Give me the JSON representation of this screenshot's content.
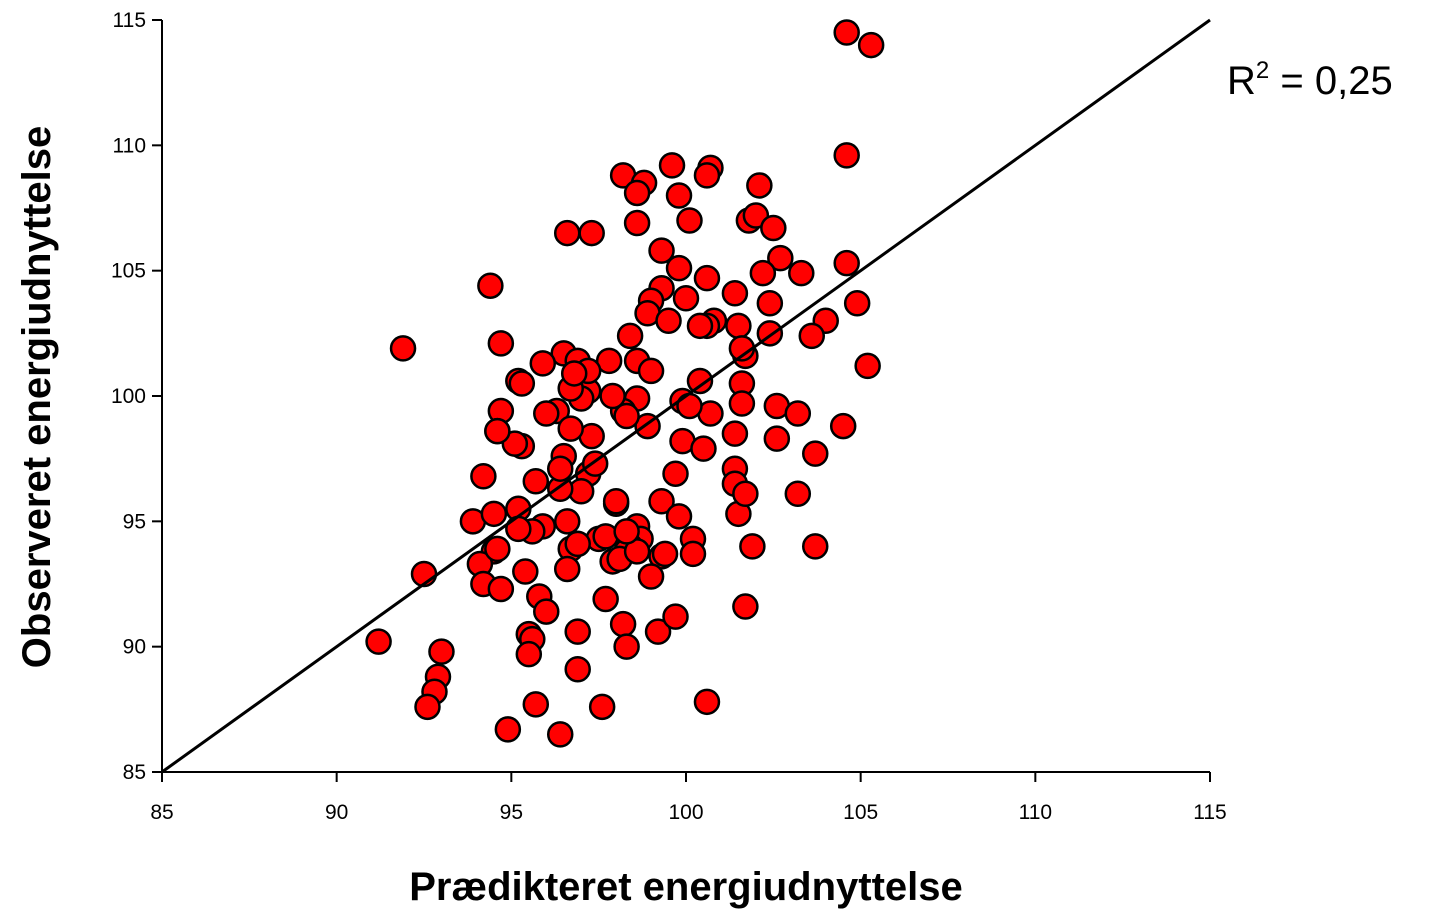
{
  "chart_data": {
    "type": "scatter",
    "xlabel": "Prædikteret energiudnyttelse",
    "ylabel": "Observeret energiudnyttelse",
    "xlim": [
      85,
      115
    ],
    "ylim": [
      85,
      115
    ],
    "xticks": [
      85,
      90,
      95,
      100,
      105,
      110,
      115
    ],
    "yticks": [
      85,
      90,
      95,
      100,
      105,
      110,
      115
    ],
    "grid": false,
    "marker_color": "#ff0000",
    "marker_edge_color": "#000000",
    "reference_line": {
      "type": "identity",
      "from": [
        85,
        85
      ],
      "to": [
        115,
        115
      ]
    },
    "annotation": {
      "base": "R",
      "sup": "2",
      "rest": " = 0,25"
    },
    "series": [
      {
        "x": [
          104.6,
          105.3,
          104.6,
          99.6,
          100.7,
          100.6,
          98.2,
          98.8,
          98.6,
          99.8,
          102.1,
          98.6,
          100.1,
          101.8,
          102.0,
          102.5,
          96.6,
          97.3,
          99.3,
          102.7,
          99.8,
          104.6,
          100.6,
          102.2,
          103.3,
          99.3,
          94.4,
          99.0,
          100.0,
          101.4,
          102.4,
          100.8,
          104.9,
          98.9,
          101.5,
          99.5,
          100.6,
          102.4,
          98.4,
          104.0,
          100.4,
          103.6,
          91.9,
          94.7,
          96.5,
          97.8,
          101.7,
          101.6,
          95.9,
          96.9,
          95.2,
          97.2,
          100.4,
          98.6,
          99.0,
          105.2,
          101.6,
          94.7,
          98.6,
          99.9,
          97.0,
          101.6,
          102.6,
          103.2,
          96.3,
          100.7,
          98.2,
          96.0,
          94.6,
          98.9,
          97.3,
          99.9,
          101.4,
          102.6,
          104.5,
          103.7,
          96.7,
          101.4,
          95.3,
          100.5,
          101.4,
          95.1,
          94.2,
          99.7,
          97.2,
          101.5,
          97.0,
          95.7,
          93.9,
          94.5,
          99.3,
          96.4,
          95.2,
          98.0,
          98.6,
          96.9,
          95.9,
          99.8,
          103.2,
          101.9,
          98.7,
          96.7,
          97.5,
          98.4,
          99.3,
          95.6,
          94.5,
          96.9,
          100.2,
          103.7,
          97.9,
          98.3,
          92.5,
          94.1,
          95.4,
          96.6,
          98.1,
          99.0,
          94.2,
          94.7,
          95.8,
          97.7,
          101.7,
          98.2,
          96.0,
          99.2,
          99.7,
          91.2,
          95.5,
          93.0,
          96.9,
          95.6,
          98.3,
          92.9,
          92.8,
          92.6,
          96.9,
          95.7,
          100.6,
          94.9,
          97.6,
          96.4,
          95.5,
          97.7,
          95.2,
          98.0,
          99.4,
          98.6,
          100.2,
          101.7,
          97.4,
          96.5,
          96.4,
          94.6,
          98.3,
          97.9,
          100.1,
          96.7,
          95.3,
          97.2,
          96.8,
          94.6,
          98.3,
          96.6
        ],
        "y": [
          114.5,
          114.0,
          109.6,
          109.2,
          109.1,
          108.8,
          108.8,
          108.5,
          108.1,
          108.0,
          108.4,
          106.9,
          107.0,
          107.0,
          107.2,
          106.7,
          106.5,
          106.5,
          105.8,
          105.5,
          105.1,
          105.3,
          104.7,
          104.9,
          104.9,
          104.3,
          104.4,
          103.8,
          103.9,
          104.1,
          103.7,
          103.0,
          103.7,
          103.3,
          102.8,
          103.0,
          102.8,
          102.5,
          102.4,
          103.0,
          102.8,
          102.4,
          101.9,
          102.1,
          101.7,
          101.4,
          101.6,
          101.9,
          101.3,
          101.4,
          100.6,
          100.2,
          100.6,
          101.4,
          101.0,
          101.2,
          100.5,
          99.4,
          99.9,
          99.8,
          99.9,
          99.7,
          99.6,
          99.3,
          99.4,
          99.3,
          99.4,
          99.3,
          98.6,
          98.8,
          98.4,
          98.2,
          98.5,
          98.3,
          98.8,
          97.7,
          98.7,
          97.1,
          98.0,
          97.9,
          96.5,
          98.1,
          96.8,
          96.9,
          96.9,
          95.3,
          96.2,
          96.6,
          95.0,
          95.3,
          95.8,
          96.3,
          95.5,
          95.7,
          94.8,
          94.1,
          94.8,
          95.2,
          96.1,
          94.0,
          94.3,
          93.9,
          94.3,
          94.0,
          93.6,
          94.6,
          93.8,
          94.1,
          94.3,
          94.0,
          93.4,
          93.8,
          92.9,
          93.3,
          93.0,
          93.1,
          93.5,
          92.8,
          92.5,
          92.3,
          92.0,
          91.9,
          91.6,
          90.9,
          91.4,
          90.6,
          91.2,
          90.2,
          90.5,
          89.8,
          90.6,
          90.3,
          90.0,
          88.8,
          88.2,
          87.6,
          89.1,
          87.7,
          87.8,
          86.7,
          87.6,
          86.5,
          89.7,
          94.4,
          94.7,
          95.8,
          93.7,
          93.8,
          93.7,
          96.1,
          97.3,
          97.6,
          97.1,
          98.6,
          99.2,
          100.0,
          99.6,
          100.3,
          100.5,
          101.0,
          100.9,
          93.9,
          94.6,
          95.0
        ]
      }
    ]
  }
}
